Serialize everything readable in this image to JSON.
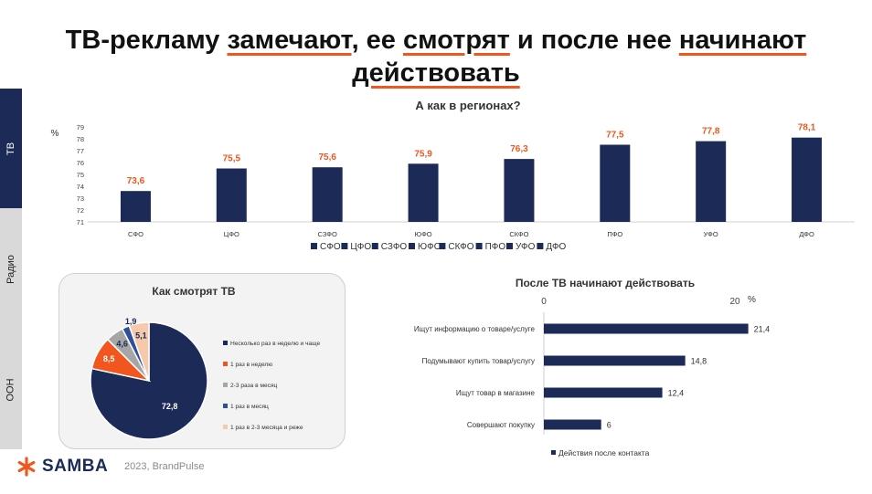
{
  "header": {
    "title_parts": [
      {
        "text": "ТВ-рекламу ",
        "u": false
      },
      {
        "text": "замечают",
        "u": true
      },
      {
        "text": ", ее ",
        "u": false
      },
      {
        "text": "смотрят",
        "u": true
      },
      {
        "text": " и после нее ",
        "u": false
      },
      {
        "text": "начинают",
        "u": true
      },
      {
        "text": "\n",
        "u": false
      },
      {
        "text": "действовать",
        "u": true
      }
    ]
  },
  "sidebar": {
    "items": [
      {
        "label": "ТВ",
        "active": true
      },
      {
        "label": "Радио",
        "active": false
      },
      {
        "label": "ООН",
        "active": false
      }
    ]
  },
  "colors": {
    "navy": "#1b2a57",
    "orange": "#f0561d",
    "gray": "#a6a6a6",
    "blue": "#2f4f9a",
    "peach": "#f6c9ab"
  },
  "chart_data": [
    {
      "type": "bar",
      "title": "А как в регионах?",
      "ylabel": "%",
      "categories": [
        "СФО",
        "ЦФО",
        "СЗФО",
        "ЮФО",
        "СКФО",
        "ПФО",
        "УФО",
        "ДФО"
      ],
      "values": [
        73.6,
        75.5,
        75.6,
        75.9,
        76.3,
        77.5,
        77.8,
        78.1
      ],
      "value_labels": [
        "73,6",
        "75,5",
        "75,6",
        "75,9",
        "76,3",
        "77,5",
        "77,8",
        "78,1"
      ],
      "ylim": [
        71,
        79
      ],
      "yticks": [
        "71",
        "72",
        "73",
        "74",
        "75",
        "76",
        "77",
        "78",
        "79"
      ],
      "legend": [
        "СФО",
        "ЦФО",
        "СЗФО",
        "ЮФО",
        "СКФО",
        "ПФО",
        "УФО",
        "ДФО"
      ],
      "legend_position": "bottom",
      "grid": false
    },
    {
      "type": "pie",
      "title": "Как смотрят ТВ",
      "slices": [
        {
          "label": "Несколько раз в неделю и чаще",
          "value": 72.8,
          "value_label": "72,8",
          "color": "#1b2a57"
        },
        {
          "label": "1 раз в неделю",
          "value": 8.5,
          "value_label": "8,5",
          "color": "#f0561d"
        },
        {
          "label": "2-3 раза в месяц",
          "value": 4.6,
          "value_label": "4,6",
          "color": "#a6a6a6"
        },
        {
          "label": "1 раз в месяц",
          "value": 1.9,
          "value_label": "1,9",
          "color": "#2f4f9a"
        },
        {
          "label": "1 раз в 2-3 месяца и реже",
          "value": 5.1,
          "value_label": "5,1",
          "color": "#f6c9ab"
        }
      ],
      "legend_position": "right"
    },
    {
      "type": "bar",
      "orientation": "horizontal",
      "title": "После ТВ начинают действовать",
      "xlabel": "%",
      "xticks": [
        "0",
        "20"
      ],
      "xlim": [
        0,
        21.4
      ],
      "categories": [
        "Ищут информацию о товаре/услуге",
        "Подумывают купить товар/услугу",
        "Ищут товар в магазине",
        "Совершают покупку"
      ],
      "values": [
        21.4,
        14.8,
        12.4,
        6
      ],
      "value_labels": [
        "21,4",
        "14,8",
        "12,4",
        "6"
      ],
      "series_name": "Действия после контакта",
      "legend_position": "bottom"
    }
  ],
  "footer": {
    "brand": "SAMBA",
    "source": "2023, BrandPulse"
  }
}
